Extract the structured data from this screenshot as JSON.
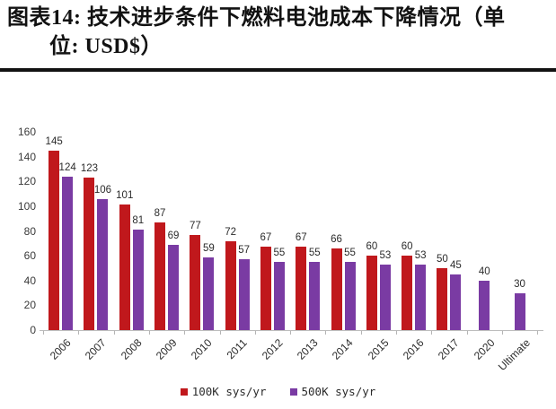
{
  "header": {
    "title_line1": "图表14: 技术进步条件下燃料电池成本下降情况（单",
    "title_line2": "位: USD$）"
  },
  "chart_data": {
    "type": "bar",
    "title": "图表14: 技术进步条件下燃料电池成本下降情况（单位: USD$）",
    "categories": [
      "2006",
      "2007",
      "2008",
      "2009",
      "2010",
      "2011",
      "2012",
      "2013",
      "2014",
      "2015",
      "2016",
      "2017",
      "2020",
      "Ultimate"
    ],
    "series": [
      {
        "name": "100K sys/yr",
        "color": "#c0181c",
        "values": [
          145,
          123,
          101,
          87,
          77,
          72,
          67,
          67,
          66,
          60,
          60,
          50,
          null,
          null
        ]
      },
      {
        "name": "500K sys/yr",
        "color": "#7a3ba3",
        "values": [
          124,
          106,
          81,
          69,
          59,
          57,
          55,
          55,
          55,
          53,
          53,
          45,
          40,
          30
        ]
      }
    ],
    "xlabel": "",
    "ylabel": "",
    "ylim": [
      0,
      160
    ],
    "yticks": [
      0,
      20,
      40,
      60,
      80,
      100,
      120,
      140,
      160
    ],
    "grid": false,
    "data_labels": true,
    "legend_position": "bottom"
  }
}
